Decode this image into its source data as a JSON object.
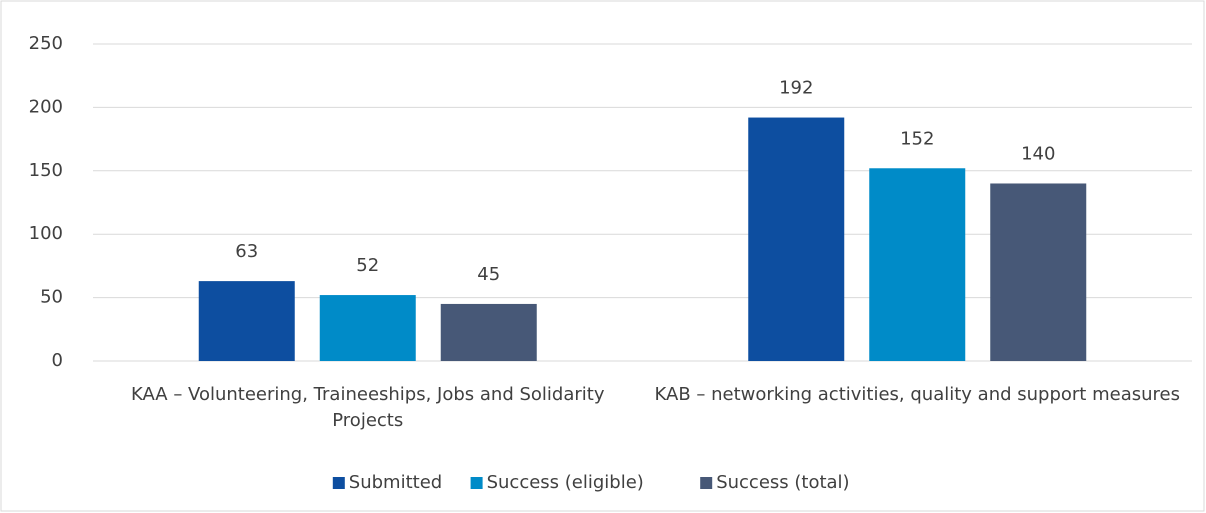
{
  "chart_data": {
    "type": "bar",
    "categories": [
      "KAA – Volunteering, Traineeships, Jobs and Solidarity Projects",
      "KAB –  networking activities, quality and support measures"
    ],
    "series": [
      {
        "name": "Submitted",
        "color": "#0d4ea0",
        "values": [
          63,
          192
        ]
      },
      {
        "name": "Success (eligible)",
        "color": "#008bc8",
        "values": [
          52,
          152
        ]
      },
      {
        "name": "Success (total)",
        "color": "#475877",
        "values": [
          45,
          140
        ]
      }
    ],
    "ylim": [
      0,
      250
    ],
    "yticks": [
      0,
      50,
      100,
      150,
      200,
      250
    ],
    "grid": true,
    "legend": "bottom"
  }
}
